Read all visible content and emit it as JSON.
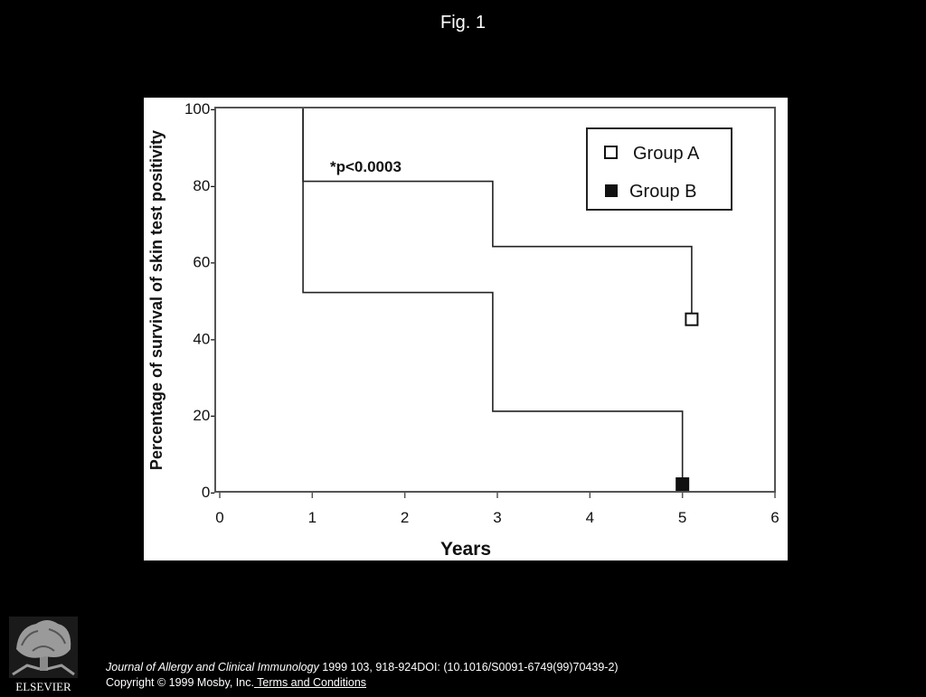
{
  "page": {
    "title": "Fig. 1"
  },
  "chart_data": {
    "type": "line",
    "step": true,
    "xlabel": "Years",
    "ylabel": "Percentage of survival of skin test positivity",
    "xlim": [
      0,
      6
    ],
    "ylim": [
      0,
      100
    ],
    "x_ticks": [
      "0",
      "1",
      "2",
      "3",
      "4",
      "5",
      "6"
    ],
    "y_ticks": [
      "0-",
      "20-",
      "40-",
      "60-",
      "80-",
      "100-"
    ],
    "legend_position": "top-right",
    "annotation": "*p<0.0003",
    "series": [
      {
        "name": "Group A",
        "marker": "open-square",
        "steps": [
          [
            0.9,
            100
          ],
          [
            0.9,
            81
          ],
          [
            2.95,
            81
          ],
          [
            2.95,
            64
          ],
          [
            5.1,
            64
          ],
          [
            5.1,
            45
          ]
        ],
        "end_marker": [
          5.1,
          45
        ]
      },
      {
        "name": "Group B",
        "marker": "filled-square",
        "steps": [
          [
            0.9,
            100
          ],
          [
            0.9,
            52
          ],
          [
            2.95,
            52
          ],
          [
            2.95,
            21
          ],
          [
            5.0,
            21
          ],
          [
            5.0,
            2
          ]
        ],
        "end_marker": [
          5.0,
          2
        ]
      }
    ]
  },
  "footer": {
    "logo_text": "ELSEVIER",
    "journal": "Journal of Allergy and Clinical Immunology",
    "citation": " 1999 103, 918-924DOI: (10.1016/S0091-6749(99)70439-2)",
    "copyright": "Copyright © 1999 Mosby, Inc.",
    "terms_link": " Terms and Conditions"
  }
}
